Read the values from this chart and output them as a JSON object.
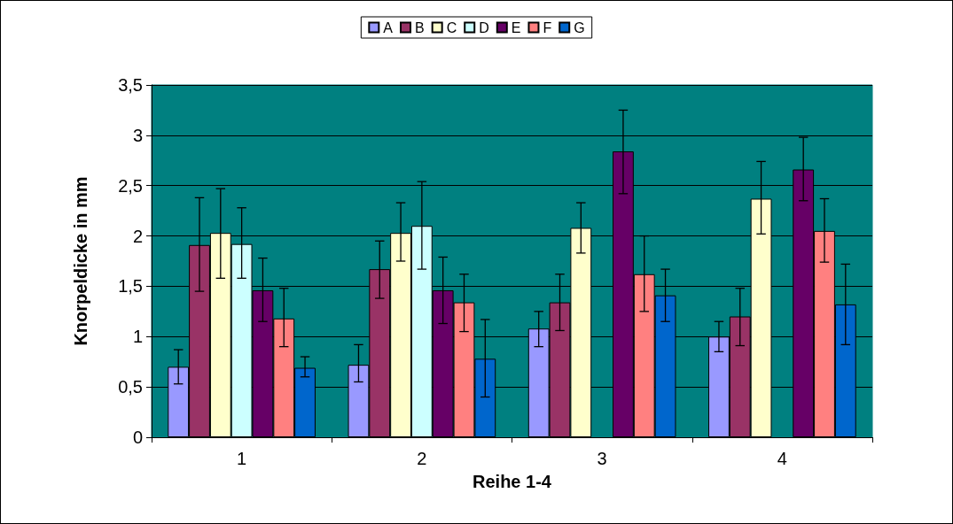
{
  "chart_data": {
    "type": "bar",
    "xlabel": "Reihe 1-4",
    "ylabel": "Knorpeldicke in mm",
    "categories": [
      "1",
      "2",
      "3",
      "4"
    ],
    "ylim": [
      0,
      3.5
    ],
    "yticks": [
      0,
      {
        "value": 0.5,
        "label": "0,5"
      },
      1,
      {
        "value": 1.5,
        "label": "1,5"
      },
      2,
      {
        "value": 2.5,
        "label": "2,5"
      },
      3,
      {
        "value": 3.5,
        "label": "3,5"
      }
    ],
    "grid": "y",
    "legend": "top",
    "series": [
      {
        "name": "A",
        "color": "#9999ff",
        "values": [
          0.7,
          0.72,
          1.08,
          1.0
        ],
        "errors": [
          [
            0.53,
            0.87
          ],
          [
            0.55,
            0.92
          ],
          [
            0.9,
            1.25
          ],
          [
            0.85,
            1.15
          ]
        ]
      },
      {
        "name": "B",
        "color": "#993366",
        "values": [
          1.91,
          1.67,
          1.34,
          1.2
        ],
        "errors": [
          [
            1.45,
            2.38
          ],
          [
            1.38,
            1.95
          ],
          [
            1.06,
            1.62
          ],
          [
            0.91,
            1.48
          ]
        ]
      },
      {
        "name": "C",
        "color": "#ffffcc",
        "values": [
          2.03,
          2.03,
          2.08,
          2.37
        ],
        "errors": [
          [
            1.58,
            2.47
          ],
          [
            1.75,
            2.33
          ],
          [
            1.83,
            2.33
          ],
          [
            2.02,
            2.74
          ]
        ]
      },
      {
        "name": "D",
        "color": "#ccffff",
        "values": [
          1.92,
          2.1,
          null,
          null
        ],
        "errors": [
          [
            1.58,
            2.28
          ],
          [
            1.67,
            2.54
          ],
          null,
          null
        ]
      },
      {
        "name": "E",
        "color": "#660066",
        "values": [
          1.46,
          1.46,
          2.84,
          2.66
        ],
        "errors": [
          [
            1.15,
            1.78
          ],
          [
            1.13,
            1.79
          ],
          [
            2.42,
            3.25
          ],
          [
            2.35,
            2.98
          ]
        ]
      },
      {
        "name": "F",
        "color": "#ff8080",
        "values": [
          1.18,
          1.34,
          1.62,
          2.05
        ],
        "errors": [
          [
            0.9,
            1.48
          ],
          [
            1.05,
            1.62
          ],
          [
            1.25,
            2.0
          ],
          [
            1.74,
            2.37
          ]
        ]
      },
      {
        "name": "G",
        "color": "#0066cc",
        "values": [
          0.69,
          0.78,
          1.41,
          1.32
        ],
        "errors": [
          [
            0.6,
            0.8
          ],
          [
            0.4,
            1.17
          ],
          [
            1.15,
            1.67
          ],
          [
            0.92,
            1.72
          ]
        ]
      }
    ]
  }
}
